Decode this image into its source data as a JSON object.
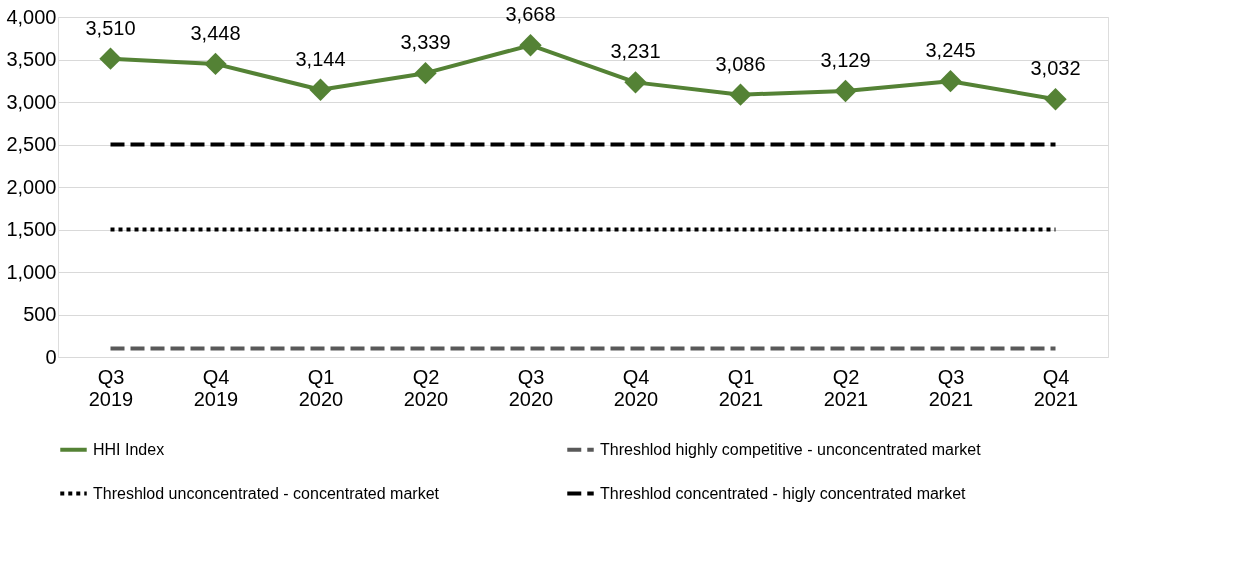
{
  "chart_data": {
    "type": "line",
    "categories": [
      "Q3 2019",
      "Q4 2019",
      "Q1 2020",
      "Q2 2020",
      "Q3 2020",
      "Q4 2020",
      "Q1 2021",
      "Q2 2021",
      "Q3 2021",
      "Q4 2021"
    ],
    "series": [
      {
        "name": "HHI Index",
        "color": "#548235",
        "values": [
          3510,
          3448,
          3144,
          3339,
          3668,
          3231,
          3086,
          3129,
          3245,
          3032
        ],
        "value_labels": [
          "3,510",
          "3,448",
          "3,144",
          "3,339",
          "3,668",
          "3,231",
          "3,086",
          "3,129",
          "3,245",
          "3,032"
        ],
        "marker": "diamond",
        "line_style": "solid"
      },
      {
        "name": "Threshlod highly competitive - unconcentrated market",
        "color": "#595959",
        "values": [
          100,
          100,
          100,
          100,
          100,
          100,
          100,
          100,
          100,
          100
        ],
        "marker": "none",
        "line_style": "dashed"
      },
      {
        "name": "Threshlod unconcentrated - concentrated market",
        "color": "#000000",
        "values": [
          1500,
          1500,
          1500,
          1500,
          1500,
          1500,
          1500,
          1500,
          1500,
          1500
        ],
        "marker": "none",
        "line_style": "dotted"
      },
      {
        "name": "Threshlod concentrated - higly concentrated market",
        "color": "#000000",
        "values": [
          2500,
          2500,
          2500,
          2500,
          2500,
          2500,
          2500,
          2500,
          2500,
          2500
        ],
        "marker": "none",
        "line_style": "dashed"
      }
    ],
    "ylim": [
      0,
      4000
    ],
    "yticks": [
      0,
      500,
      {
        "value": 1000,
        "label": "1,000"
      },
      {
        "value": 1500,
        "label": "1,500"
      },
      {
        "value": 2000,
        "label": "2,000"
      },
      {
        "value": 2500,
        "label": "2,500"
      },
      {
        "value": 3000,
        "label": "3,000"
      },
      {
        "value": 3500,
        "label": "3,500"
      },
      {
        "value": 4000,
        "label": "4,000"
      }
    ],
    "grid": "y",
    "legend": "bottom"
  }
}
